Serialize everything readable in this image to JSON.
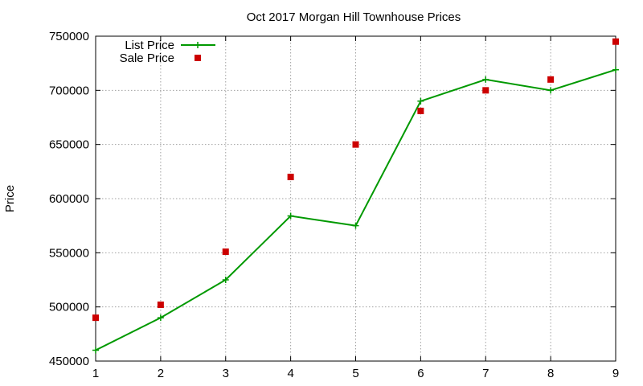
{
  "chart_data": {
    "type": "line",
    "title": "Oct 2017 Morgan Hill Townhouse Prices",
    "xlabel": "",
    "ylabel": "Price",
    "x": [
      1,
      2,
      3,
      4,
      5,
      6,
      7,
      8,
      9
    ],
    "xlim": [
      1,
      9
    ],
    "ylim": [
      450000,
      750000
    ],
    "x_ticks": [
      "1",
      "2",
      "3",
      "4",
      "5",
      "6",
      "7",
      "8",
      "9"
    ],
    "y_ticks": [
      "450000",
      "500000",
      "550000",
      "600000",
      "650000",
      "700000",
      "750000"
    ],
    "grid": true,
    "legend_position": "top-left",
    "series": [
      {
        "name": "List Price",
        "style": "line-with-plus-markers",
        "color": "#009900",
        "values": [
          460000,
          490000,
          525000,
          584000,
          575000,
          690000,
          710000,
          700000,
          719000
        ]
      },
      {
        "name": "Sale Price",
        "style": "square-markers",
        "color": "#cc0000",
        "values": [
          490000,
          502000,
          551000,
          620000,
          650000,
          681000,
          700000,
          710000,
          745000
        ]
      }
    ]
  }
}
